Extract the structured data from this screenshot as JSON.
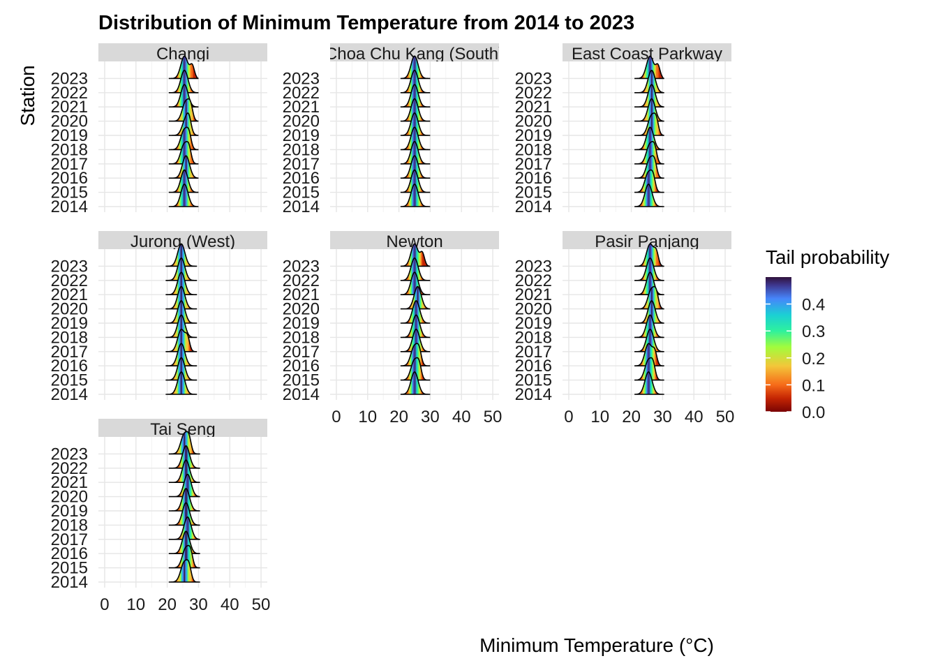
{
  "chart_data": {
    "type": "ridgeline",
    "title": "Distribution of Minimum Temperature from 2014 to 2023",
    "xlabel": "Minimum Temperature (°C)",
    "ylabel": "Station",
    "xlim": [
      -2,
      52
    ],
    "x_ticks": [
      0,
      10,
      20,
      30,
      40,
      50
    ],
    "years": [
      "2014",
      "2015",
      "2016",
      "2017",
      "2018",
      "2019",
      "2020",
      "2021",
      "2022",
      "2023"
    ],
    "fill": "tail probability (turbo colour scale)",
    "legend": {
      "title": "Tail probability",
      "position": "right",
      "ticks": [
        "0.0",
        "0.1",
        "0.2",
        "0.3",
        "0.4"
      ],
      "colors": [
        "#7a0403",
        "#c42503",
        "#f66b19",
        "#f3c63a",
        "#a2fc3c",
        "#2ef19d",
        "#1bcfd4",
        "#4686fb",
        "#3e378f",
        "#30123b"
      ]
    },
    "panels": [
      {
        "station": "Changi",
        "strip_label": "Changi",
        "distributions": [
          {
            "year": "2014",
            "min": 20.5,
            "max": 30,
            "mode": 25.5,
            "secondary_mode": null
          },
          {
            "year": "2015",
            "min": 20.5,
            "max": 30,
            "mode": 25.5,
            "secondary_mode": null
          },
          {
            "year": "2016",
            "min": 20.5,
            "max": 30,
            "mode": 26,
            "secondary_mode": null
          },
          {
            "year": "2017",
            "min": 20.5,
            "max": 30,
            "mode": 25.5,
            "secondary_mode": 27
          },
          {
            "year": "2018",
            "min": 20.5,
            "max": 30,
            "mode": 25.5,
            "secondary_mode": 27
          },
          {
            "year": "2019",
            "min": 20.5,
            "max": 30,
            "mode": 26,
            "secondary_mode": 27
          },
          {
            "year": "2020",
            "min": 20.5,
            "max": 30,
            "mode": 26,
            "secondary_mode": 27.5
          },
          {
            "year": "2021",
            "min": 20.5,
            "max": 30,
            "mode": 25.5,
            "secondary_mode": null
          },
          {
            "year": "2022",
            "min": 20.5,
            "max": 30,
            "mode": 25.5,
            "secondary_mode": null
          },
          {
            "year": "2023",
            "min": 20.5,
            "max": 30,
            "mode": 25.5,
            "secondary_mode": 28
          }
        ]
      },
      {
        "station": "Choa Chu Kang (South)",
        "strip_label": "Choa Chu Kang (South)",
        "distributions": [
          {
            "year": "2014",
            "min": 20.5,
            "max": 30,
            "mode": 25,
            "secondary_mode": null
          },
          {
            "year": "2015",
            "min": 20.5,
            "max": 30,
            "mode": 25,
            "secondary_mode": null
          },
          {
            "year": "2016",
            "min": 20.5,
            "max": 30,
            "mode": 25,
            "secondary_mode": null
          },
          {
            "year": "2017",
            "min": 20.5,
            "max": 30,
            "mode": 25,
            "secondary_mode": null
          },
          {
            "year": "2018",
            "min": 20.5,
            "max": 30,
            "mode": 25,
            "secondary_mode": null
          },
          {
            "year": "2019",
            "min": 20.5,
            "max": 30,
            "mode": 25,
            "secondary_mode": null
          },
          {
            "year": "2020",
            "min": 20.5,
            "max": 30,
            "mode": 25,
            "secondary_mode": null
          },
          {
            "year": "2021",
            "min": 20.5,
            "max": 30,
            "mode": 25,
            "secondary_mode": null
          },
          {
            "year": "2022",
            "min": 20.5,
            "max": 30,
            "mode": 25,
            "secondary_mode": null
          },
          {
            "year": "2023",
            "min": 20.5,
            "max": 30,
            "mode": 25,
            "secondary_mode": null
          }
        ]
      },
      {
        "station": "East Coast Parkway",
        "strip_label": "East Coast Parkway",
        "distributions": [
          {
            "year": "2014",
            "min": 21,
            "max": 30.5,
            "mode": 25.5,
            "secondary_mode": null
          },
          {
            "year": "2015",
            "min": 21,
            "max": 30.5,
            "mode": 25.5,
            "secondary_mode": 27
          },
          {
            "year": "2016",
            "min": 21,
            "max": 30.5,
            "mode": 26,
            "secondary_mode": 27.5
          },
          {
            "year": "2017",
            "min": 21,
            "max": 30.5,
            "mode": 26,
            "secondary_mode": 27.5
          },
          {
            "year": "2018",
            "min": 21,
            "max": 30.5,
            "mode": 26,
            "secondary_mode": null
          },
          {
            "year": "2019",
            "min": 21,
            "max": 30.5,
            "mode": 26.5,
            "secondary_mode": 28
          },
          {
            "year": "2020",
            "min": 21,
            "max": 30.5,
            "mode": 26.5,
            "secondary_mode": null
          },
          {
            "year": "2021",
            "min": 21,
            "max": 30.5,
            "mode": 26.5,
            "secondary_mode": null
          },
          {
            "year": "2022",
            "min": 21,
            "max": 30.5,
            "mode": 26.5,
            "secondary_mode": null
          },
          {
            "year": "2023",
            "min": 21,
            "max": 30.5,
            "mode": 26,
            "secondary_mode": 28.5
          }
        ]
      },
      {
        "station": "Jurong (West)",
        "strip_label": "Jurong (West)",
        "distributions": [
          {
            "year": "2014",
            "min": 19.5,
            "max": 29.5,
            "mode": 24.5,
            "secondary_mode": null
          },
          {
            "year": "2015",
            "min": 19.5,
            "max": 29.5,
            "mode": 24.5,
            "secondary_mode": null
          },
          {
            "year": "2016",
            "min": 19.5,
            "max": 29.5,
            "mode": 24.5,
            "secondary_mode": null
          },
          {
            "year": "2017",
            "min": 19.5,
            "max": 29.5,
            "mode": 24.5,
            "secondary_mode": 26.5
          },
          {
            "year": "2018",
            "min": 19.5,
            "max": 29.5,
            "mode": 24.5,
            "secondary_mode": null
          },
          {
            "year": "2019",
            "min": 19.5,
            "max": 29.5,
            "mode": 24.5,
            "secondary_mode": null
          },
          {
            "year": "2020",
            "min": 19.5,
            "max": 29.5,
            "mode": 24.5,
            "secondary_mode": null
          },
          {
            "year": "2021",
            "min": 19.5,
            "max": 29.5,
            "mode": 24.5,
            "secondary_mode": null
          },
          {
            "year": "2022",
            "min": 19.5,
            "max": 29.5,
            "mode": 24.5,
            "secondary_mode": null
          },
          {
            "year": "2023",
            "min": 19.5,
            "max": 29.5,
            "mode": 24.5,
            "secondary_mode": null
          }
        ]
      },
      {
        "station": "Newton",
        "strip_label": "Newton",
        "distributions": [
          {
            "year": "2014",
            "min": 20.5,
            "max": 30,
            "mode": 25,
            "secondary_mode": null
          },
          {
            "year": "2015",
            "min": 20.5,
            "max": 30,
            "mode": 25,
            "secondary_mode": 26.5
          },
          {
            "year": "2016",
            "min": 20.5,
            "max": 30,
            "mode": 25,
            "secondary_mode": 26.5
          },
          {
            "year": "2017",
            "min": 20.5,
            "max": 30,
            "mode": 25.5,
            "secondary_mode": null
          },
          {
            "year": "2018",
            "min": 20.5,
            "max": 30,
            "mode": 25.5,
            "secondary_mode": null
          },
          {
            "year": "2019",
            "min": 20.5,
            "max": 30,
            "mode": 25.5,
            "secondary_mode": null
          },
          {
            "year": "2020",
            "min": 20.5,
            "max": 30,
            "mode": 26,
            "secondary_mode": null
          },
          {
            "year": "2021",
            "min": 20.5,
            "max": 30,
            "mode": 25,
            "secondary_mode": null
          },
          {
            "year": "2022",
            "min": 20.5,
            "max": 30,
            "mode": 25,
            "secondary_mode": null
          },
          {
            "year": "2023",
            "min": 20.5,
            "max": 30,
            "mode": 25,
            "secondary_mode": 27.5
          }
        ]
      },
      {
        "station": "Pasir Panjang",
        "strip_label": "Pasir Panjang",
        "distributions": [
          {
            "year": "2014",
            "min": 21,
            "max": 30.5,
            "mode": 25.5,
            "secondary_mode": null
          },
          {
            "year": "2015",
            "min": 21,
            "max": 30.5,
            "mode": 25.5,
            "secondary_mode": 27
          },
          {
            "year": "2016",
            "min": 21,
            "max": 30.5,
            "mode": 25.5,
            "secondary_mode": 27.5
          },
          {
            "year": "2017",
            "min": 21,
            "max": 30.5,
            "mode": 26,
            "secondary_mode": null
          },
          {
            "year": "2018",
            "min": 21,
            "max": 30.5,
            "mode": 26,
            "secondary_mode": null
          },
          {
            "year": "2019",
            "min": 21,
            "max": 30.5,
            "mode": 26.5,
            "secondary_mode": null
          },
          {
            "year": "2020",
            "min": 21,
            "max": 30.5,
            "mode": 26.5,
            "secondary_mode": 28
          },
          {
            "year": "2021",
            "min": 21,
            "max": 30.5,
            "mode": 26,
            "secondary_mode": null
          },
          {
            "year": "2022",
            "min": 21,
            "max": 30.5,
            "mode": 26,
            "secondary_mode": null
          },
          {
            "year": "2023",
            "min": 21,
            "max": 30.5,
            "mode": 26,
            "secondary_mode": 28
          }
        ]
      },
      {
        "station": "Tai Seng",
        "strip_label": "Tai Seng",
        "distributions": [
          {
            "year": "2014",
            "min": 20.5,
            "max": 30.5,
            "mode": 25.5,
            "secondary_mode": 27
          },
          {
            "year": "2015",
            "min": 20.5,
            "max": 30.5,
            "mode": 26,
            "secondary_mode": 27.5
          },
          {
            "year": "2016",
            "min": 20.5,
            "max": 30.5,
            "mode": 26,
            "secondary_mode": null
          },
          {
            "year": "2017",
            "min": 20.5,
            "max": 30.5,
            "mode": 26.5,
            "secondary_mode": null
          },
          {
            "year": "2018",
            "min": 20.5,
            "max": 30.5,
            "mode": 26,
            "secondary_mode": null
          },
          {
            "year": "2019",
            "min": 20.5,
            "max": 30.5,
            "mode": 26,
            "secondary_mode": null
          },
          {
            "year": "2020",
            "min": 20.5,
            "max": 30.5,
            "mode": 26.5,
            "secondary_mode": null
          },
          {
            "year": "2021",
            "min": 20.5,
            "max": 30.5,
            "mode": 26,
            "secondary_mode": null
          },
          {
            "year": "2022",
            "min": 20.5,
            "max": 30.5,
            "mode": 26,
            "secondary_mode": null
          },
          {
            "year": "2023",
            "min": 20.5,
            "max": 30.5,
            "mode": 25.5,
            "secondary_mode": 27
          }
        ]
      }
    ]
  }
}
